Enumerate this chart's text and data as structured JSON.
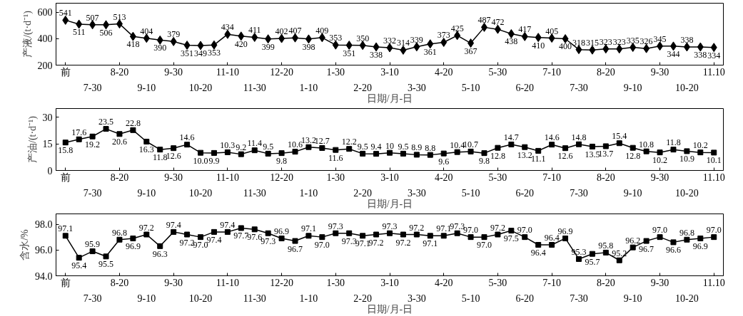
{
  "chart_data": [
    {
      "type": "line",
      "xlabel": "日期/月-日",
      "ylabel": "产液/(t·d⁻¹)",
      "marker": "diamond",
      "data_labels": true,
      "ylim": [
        200,
        670
      ],
      "yticks": [
        200,
        400,
        600
      ],
      "categories": [
        "前",
        null,
        "7-30",
        null,
        "8-20",
        null,
        "9-10",
        null,
        "9-30",
        null,
        "10-20",
        null,
        "11-10",
        null,
        "11-30",
        null,
        "12-20",
        null,
        "1-10",
        null,
        "1-30",
        null,
        "2-20",
        null,
        "3-10",
        null,
        "3-30",
        null,
        "4-20",
        null,
        "5-10",
        null,
        "5-30",
        null,
        "6-20",
        null,
        "7-10",
        null,
        "7-30",
        null,
        "8-20",
        null,
        "9-10",
        null,
        "9-30",
        null,
        "10-20",
        null,
        "11.10"
      ],
      "series": [
        {
          "color": "#000000",
          "values": [
            541,
            511,
            507,
            506,
            513,
            418,
            404,
            390,
            379,
            351,
            349,
            353,
            434,
            420,
            411,
            399,
            402,
            407,
            398,
            409,
            353,
            351,
            350,
            338,
            332,
            314,
            339,
            361,
            373,
            425,
            367,
            487,
            472,
            438,
            417,
            410,
            405,
            400,
            318,
            315,
            323,
            323,
            335,
            326,
            345,
            344,
            338,
            338,
            334
          ]
        }
      ]
    },
    {
      "type": "line",
      "xlabel": "日期/月-日",
      "ylabel": "产油/(t·d⁻¹)",
      "marker": "square",
      "data_labels": true,
      "ylim": [
        0,
        35
      ],
      "yticks": [
        0,
        15,
        30
      ],
      "categories": [
        "前",
        null,
        "7-30",
        null,
        "8-20",
        null,
        "9-10",
        null,
        "9-30",
        null,
        "10-20",
        null,
        "11-10",
        null,
        "11-30",
        null,
        "12-20",
        null,
        "1-10",
        null,
        "1-30",
        null,
        "2-20",
        null,
        "3-10",
        null,
        "3-30",
        null,
        "4-20",
        null,
        "5-10",
        null,
        "5-30",
        null,
        "6-20",
        null,
        "7-10",
        null,
        "7-30",
        null,
        "8-20",
        null,
        "9-10",
        null,
        "9-30",
        null,
        "10-20",
        null,
        "11.10"
      ],
      "series": [
        {
          "color": "#000000",
          "values": [
            15.8,
            17.6,
            19.2,
            23.5,
            20.6,
            22.8,
            16.3,
            11.8,
            12.6,
            14.6,
            10.0,
            9.9,
            10.3,
            9.2,
            11.4,
            9.5,
            9.8,
            10.6,
            13.2,
            12.7,
            11.6,
            12.2,
            9.5,
            9.4,
            10,
            9.5,
            8.9,
            8.8,
            9.6,
            10.4,
            10.7,
            9.8,
            12.8,
            14.7,
            13.2,
            11.1,
            14.6,
            12.6,
            14.8,
            13.5,
            13.7,
            15.4,
            12.8,
            10.8,
            10.2,
            11.8,
            10.9,
            10.2,
            10.1
          ],
          "value_labels": [
            "15.8",
            "17.6",
            "19.2",
            "23.5",
            "20.6",
            "22.8",
            "16.3",
            "11.8",
            "12.6",
            "14.6",
            "10.0",
            "9.9",
            "10.3",
            "9.2",
            "11.4",
            "9.5",
            "9.8",
            "10.6",
            "13.2",
            "12.7",
            "11.6",
            "12.2",
            "9.5",
            "9.4",
            "10",
            "9.5",
            "8.9",
            "8.8",
            "9.6",
            "10.4",
            "10.7",
            "9.8",
            "12.8",
            "14.7",
            "13.2",
            "11.1",
            "14.6",
            "12.6",
            "14.8",
            "13.5",
            "13.7",
            "15.4",
            "12.8",
            "10.8",
            "10.2",
            "11.8",
            "10.9",
            "10.2",
            "10.1"
          ]
        }
      ]
    },
    {
      "type": "line",
      "xlabel": "日期/月-日",
      "ylabel": "含水/%",
      "marker": "square",
      "data_labels": true,
      "ylim": [
        94,
        98.8
      ],
      "yticks": [
        {
          "value": 94,
          "label": "94.0"
        },
        {
          "value": 96,
          "label": "96.0"
        },
        {
          "value": 98,
          "label": "98.0"
        }
      ],
      "categories": [
        "前",
        null,
        "7-30",
        null,
        "8-20",
        null,
        "9-10",
        null,
        "9-30",
        null,
        "10-20",
        null,
        "11-10",
        null,
        "11-30",
        null,
        "12-20",
        null,
        "1-10",
        null,
        "1-30",
        null,
        "2-20",
        null,
        "3-10",
        null,
        "3-30",
        null,
        "4-20",
        null,
        "5-10",
        null,
        "5-30",
        null,
        "6-20",
        null,
        "7-10",
        null,
        "7-30",
        null,
        "8-20",
        null,
        "9-10",
        null,
        "9-30",
        null,
        "10-20",
        null,
        "11.10"
      ],
      "series": [
        {
          "color": "#000000",
          "values": [
            97.1,
            95.4,
            95.9,
            95.5,
            96.8,
            96.9,
            97.2,
            96.3,
            97.4,
            97.2,
            97.0,
            97.4,
            97.4,
            97.7,
            97.6,
            97.3,
            96.9,
            96.7,
            97.1,
            97.0,
            97.3,
            97.3,
            97.1,
            97.2,
            97.3,
            97.2,
            97.2,
            97.1,
            97.1,
            97.3,
            97.0,
            97.0,
            97.2,
            97.5,
            97.0,
            96.4,
            96.4,
            96.9,
            95.3,
            95.7,
            95.8,
            95.2,
            96.2,
            96.7,
            97.0,
            96.6,
            96.8,
            96.9,
            97.0
          ],
          "value_labels": [
            "97.1",
            "95.4",
            "95.9",
            "95.5",
            "96.8",
            "96.9",
            "97.2",
            "96.3",
            "97.4",
            "97.2",
            "97.0",
            "97.4",
            "97.4",
            "97.7",
            "97.6",
            "97.3",
            "96.9",
            "96.7",
            "97.1",
            "97.0",
            "97.3",
            "97.3",
            "97.1",
            "97.2",
            "97.3",
            "97.2",
            "97.2",
            "97.1",
            "97.1",
            "97.3",
            "97.0",
            "97.0",
            "97.2",
            "97.5",
            "97.0",
            "96.4",
            "96.4",
            "96.9",
            "95.3",
            "95.7",
            "95.8",
            "95.2",
            "96.2",
            "96.7",
            "97.0",
            "96.6",
            "96.8",
            "96.9",
            "97.0"
          ]
        }
      ]
    }
  ]
}
